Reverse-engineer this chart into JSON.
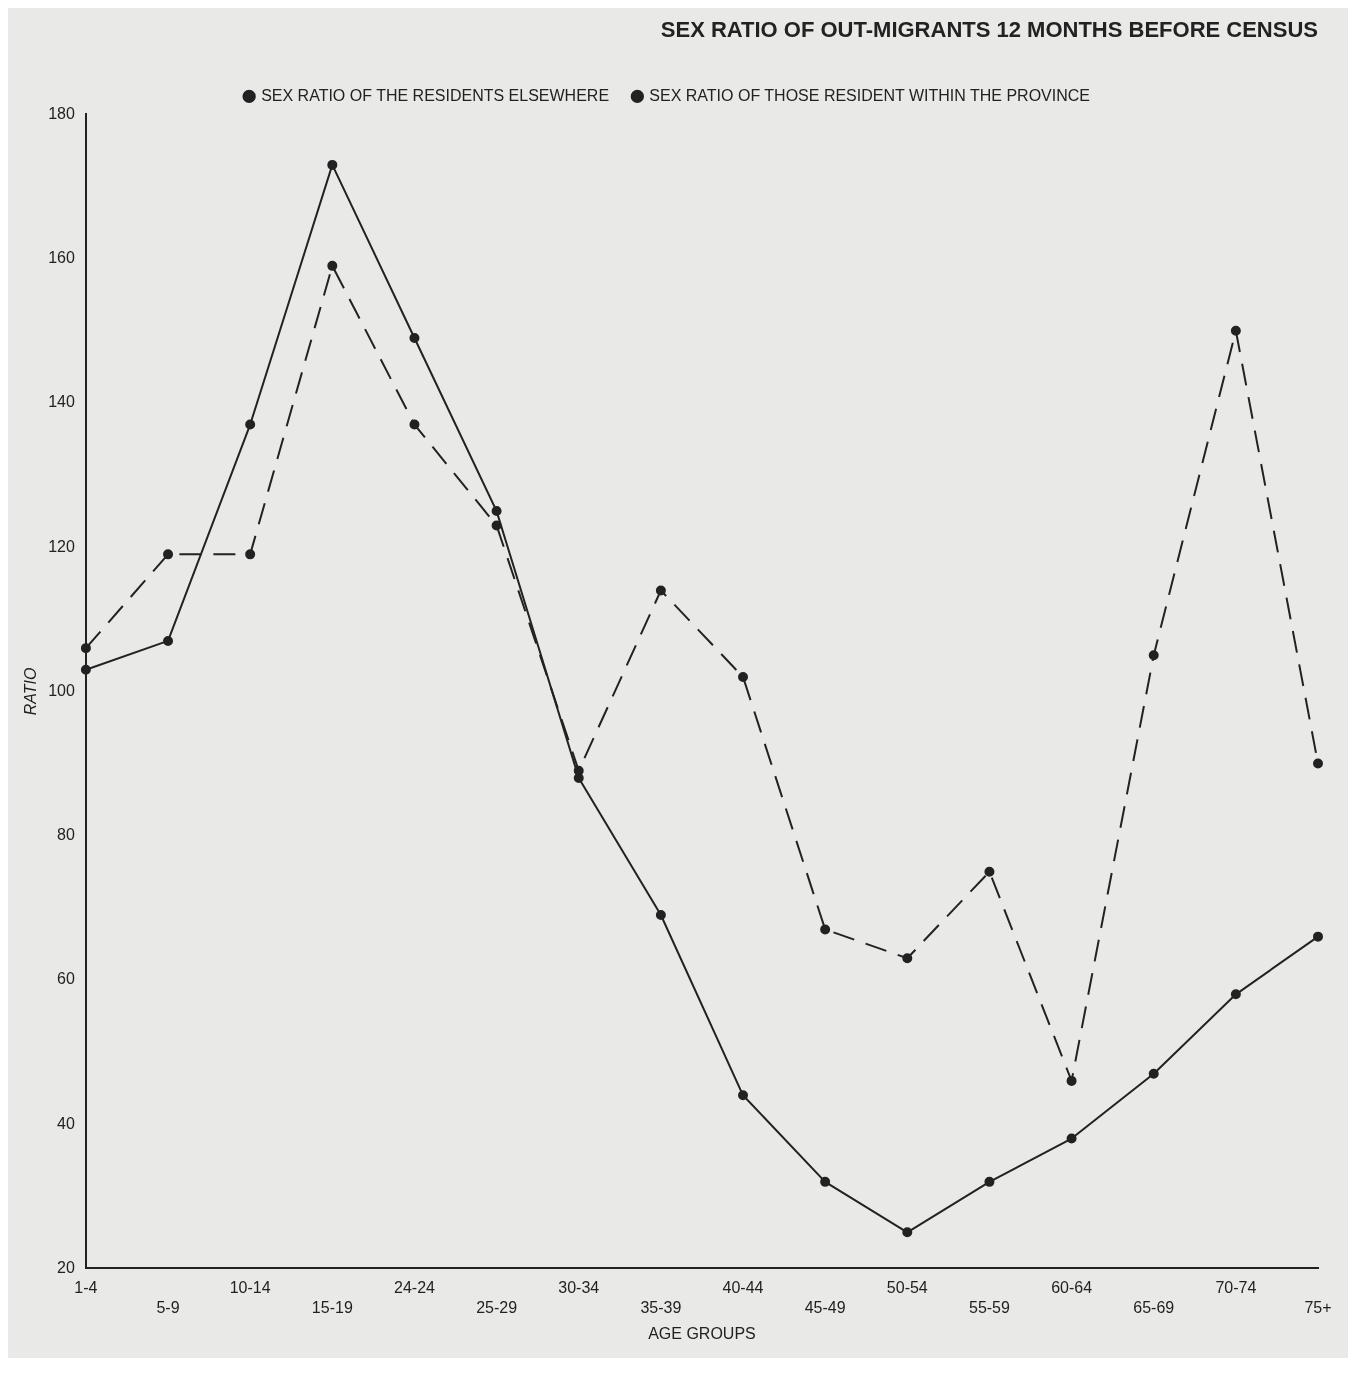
{
  "chart_data": {
    "type": "line",
    "title": "SEX RATIO OF OUT-MIGRANTS 12 MONTHS BEFORE CENSUS",
    "xlabel": "AGE GROUPS",
    "ylabel": "RATIO",
    "categories": [
      "1-4",
      "5-9",
      "10-14",
      "15-19",
      "24-24",
      "25-29",
      "30-34",
      "35-39",
      "40-44",
      "45-49",
      "50-54",
      "55-59",
      "60-64",
      "65-69",
      "70-74",
      "75+"
    ],
    "series": [
      {
        "name": "SEX RATIO OF THE RESIDENTS ELSEWHERE",
        "color": "#222222",
        "line_style": "solid",
        "values": [
          103,
          107,
          137,
          173,
          149,
          125,
          88,
          69,
          44,
          32,
          25,
          32,
          38,
          47,
          58,
          66
        ]
      },
      {
        "name": "SEX RATIO OF THOSE RESIDENT WITHIN THE PROVINCE",
        "color": "#222222",
        "line_style": "dashed",
        "values": [
          106,
          119,
          119,
          159,
          137,
          123,
          89,
          114,
          102,
          67,
          63,
          75,
          46,
          105,
          150,
          90
        ]
      }
    ],
    "ylim": [
      20,
      180
    ],
    "yticks": [
      20,
      40,
      60,
      80,
      100,
      120,
      140,
      160,
      180
    ],
    "grid": false,
    "legend": "top right",
    "marker": "circle"
  }
}
